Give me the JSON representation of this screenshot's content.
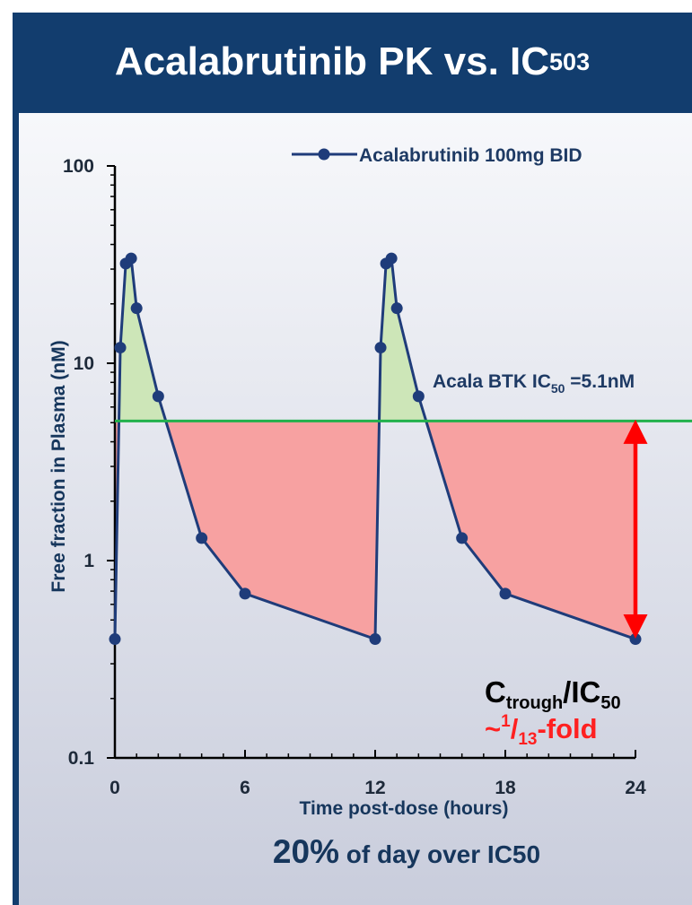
{
  "slide": {
    "title_main": "Acalabrutinib PK vs. IC",
    "title_sub": "50",
    "title_sup": "3",
    "header_color": "#123d6e"
  },
  "chart_data": {
    "type": "line",
    "yscale": "log",
    "xlabel": "Time post-dose (hours)",
    "ylabel": "Free fraction in Plasma (nM)",
    "xlim": [
      0,
      24
    ],
    "ylim": [
      0.1,
      100
    ],
    "x_ticks": [
      "0",
      "6",
      "12",
      "18",
      "24"
    ],
    "y_ticks": [
      "0.1",
      "1",
      "10",
      "100"
    ],
    "grid": false,
    "legend_position": "top-right",
    "series": [
      {
        "name": "Acalabrutinib 100mg BID",
        "color": "#1f3c7a",
        "x": [
          0,
          0.25,
          0.5,
          0.75,
          1,
          2,
          4,
          6,
          12,
          12.25,
          12.5,
          12.75,
          13,
          14,
          16,
          18,
          24
        ],
        "y": [
          0.4,
          12,
          32,
          34,
          19,
          6.8,
          1.3,
          0.68,
          0.4,
          12,
          32,
          34,
          19,
          6.8,
          1.3,
          0.68,
          0.4
        ]
      }
    ],
    "reference_line": {
      "value": 5.1,
      "color": "#22b14c",
      "label_prefix": "Acala BTK IC",
      "label_sub": "50",
      "label_suffix": " =5.1nM"
    },
    "fill_above_color": "#cde6b8",
    "fill_below_color": "#f7a1a1",
    "arrow_color": "#ff0000",
    "annotations": {
      "ratio_C": "C",
      "ratio_sub1": "trough",
      "ratio_mid": "/IC",
      "ratio_sub2": "50",
      "fold_prefix": "~",
      "fold_sup": "1",
      "fold_slash": "/",
      "fold_sub": "13",
      "fold_suffix": "-fold",
      "fold_color": "#ff2020"
    },
    "footer": {
      "pct": "20%",
      "rest": " of day over IC50"
    }
  }
}
